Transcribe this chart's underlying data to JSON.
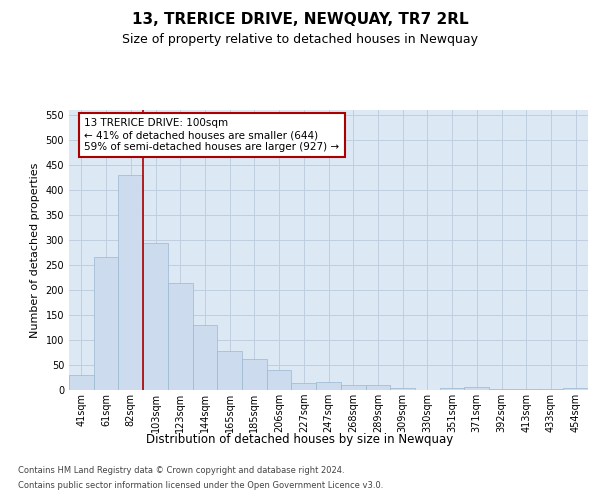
{
  "title": "13, TRERICE DRIVE, NEWQUAY, TR7 2RL",
  "subtitle": "Size of property relative to detached houses in Newquay",
  "xlabel": "Distribution of detached houses by size in Newquay",
  "ylabel": "Number of detached properties",
  "footer_line1": "Contains HM Land Registry data © Crown copyright and database right 2024.",
  "footer_line2": "Contains public sector information licensed under the Open Government Licence v3.0.",
  "bar_labels": [
    "41sqm",
    "61sqm",
    "82sqm",
    "103sqm",
    "123sqm",
    "144sqm",
    "165sqm",
    "185sqm",
    "206sqm",
    "227sqm",
    "247sqm",
    "268sqm",
    "289sqm",
    "309sqm",
    "330sqm",
    "351sqm",
    "371sqm",
    "392sqm",
    "413sqm",
    "433sqm",
    "454sqm"
  ],
  "bar_values": [
    30,
    267,
    430,
    295,
    215,
    130,
    78,
    62,
    40,
    15,
    17,
    10,
    10,
    5,
    0,
    5,
    6,
    3,
    2,
    3,
    4
  ],
  "bar_color": "#ccdcee",
  "bar_edgecolor": "#9ab8d0",
  "grid_color": "#c0cfe0",
  "bg_color": "#dce8f4",
  "ylim": [
    0,
    560
  ],
  "yticks": [
    0,
    50,
    100,
    150,
    200,
    250,
    300,
    350,
    400,
    450,
    500,
    550
  ],
  "property_line_x": 2.5,
  "annotation_text_line1": "13 TRERICE DRIVE: 100sqm",
  "annotation_text_line2": "← 41% of detached houses are smaller (644)",
  "annotation_text_line3": "59% of semi-detached houses are larger (927) →",
  "red_line_color": "#aa0000",
  "annotation_border_color": "#aa0000",
  "title_fontsize": 11,
  "subtitle_fontsize": 9,
  "xlabel_fontsize": 8.5,
  "ylabel_fontsize": 8,
  "tick_fontsize": 7,
  "annotation_fontsize": 7.5,
  "footer_fontsize": 6
}
